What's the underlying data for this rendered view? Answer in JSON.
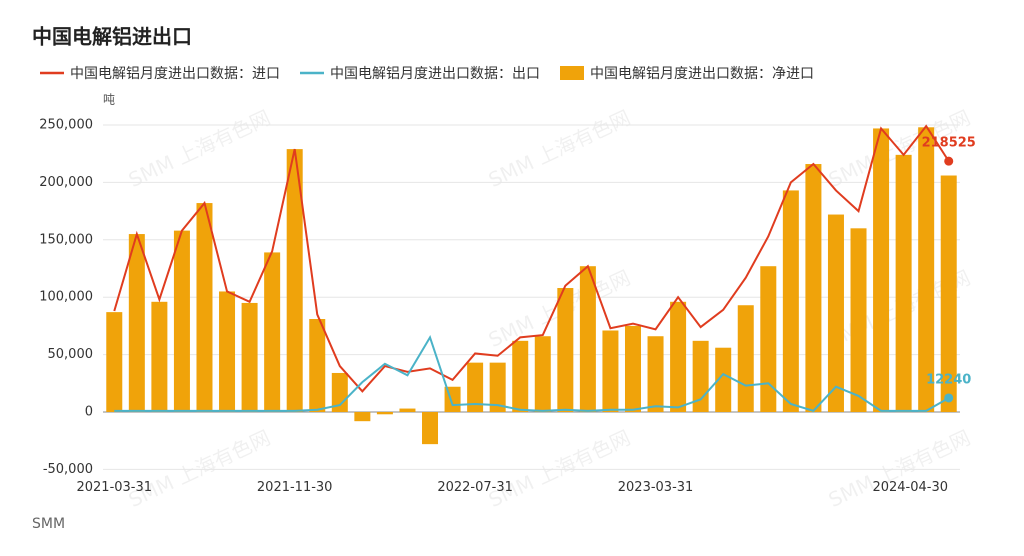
{
  "chart_data": {
    "type": "bar_line",
    "title": "中国电解铝进出口",
    "y_unit": "吨",
    "source": "SMM",
    "watermark": "SMM 上海有色网",
    "categories": [
      "2021-03-31",
      null,
      null,
      null,
      null,
      null,
      null,
      null,
      "2021-11-30",
      null,
      null,
      null,
      null,
      null,
      null,
      null,
      "2022-07-31",
      null,
      null,
      null,
      null,
      null,
      null,
      null,
      "2023-03-31",
      null,
      null,
      null,
      null,
      null,
      null,
      null,
      null,
      null,
      null,
      null,
      null,
      "2024-04-30"
    ],
    "series": [
      {
        "name": "中国电解铝月度进出口数据：进口",
        "kind": "line",
        "color": "#e03c1f",
        "values": [
          88000,
          155000,
          98000,
          158000,
          182000,
          105000,
          96000,
          140000,
          229000,
          85000,
          40000,
          18000,
          40000,
          35000,
          38000,
          28000,
          51000,
          49000,
          65000,
          67000,
          110000,
          127000,
          73000,
          77000,
          72000,
          100000,
          74000,
          89000,
          117000,
          153000,
          200000,
          216000,
          193000,
          175000,
          247000,
          224000,
          249000,
          218525
        ]
      },
      {
        "name": "中国电解铝月度进出口数据：出口",
        "kind": "line",
        "color": "#4bb3c8",
        "values": [
          1000,
          1000,
          1000,
          1000,
          1000,
          1000,
          1000,
          1000,
          1000,
          2000,
          6000,
          26000,
          42000,
          32000,
          65000,
          6000,
          7000,
          6000,
          2000,
          1000,
          2000,
          1000,
          2000,
          2000,
          5000,
          4000,
          11000,
          33000,
          23000,
          25000,
          7000,
          1000,
          22000,
          14000,
          1000,
          1000,
          1000,
          12240
        ]
      },
      {
        "name": "中国电解铝月度进出口数据：净进口",
        "kind": "bar",
        "color": "#f0a30a",
        "values": [
          87000,
          155000,
          96000,
          158000,
          182000,
          105000,
          95000,
          139000,
          229000,
          81000,
          34000,
          -8000,
          -2000,
          3000,
          -28000,
          22000,
          43000,
          43000,
          62000,
          66000,
          108000,
          127000,
          71000,
          75000,
          66000,
          96000,
          62000,
          56000,
          93000,
          127000,
          193000,
          216000,
          172000,
          160000,
          247000,
          224000,
          248000,
          206000
        ]
      }
    ],
    "ylim": [
      -50000,
      250000
    ],
    "yticks": [
      {
        "value": -50000,
        "label": "-50,000"
      },
      0,
      {
        "value": 50000,
        "label": "50,000"
      },
      {
        "value": 100000,
        "label": "100,000"
      },
      {
        "value": 150000,
        "label": "150,000"
      },
      {
        "value": 200000,
        "label": "200,000"
      },
      {
        "value": 250000,
        "label": "250,000"
      }
    ],
    "grid": true
  }
}
